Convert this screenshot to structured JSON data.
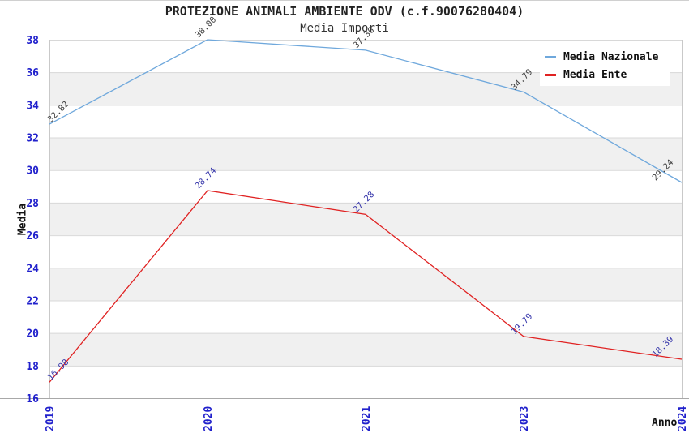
{
  "chart_data": {
    "type": "line",
    "title": "PROTEZIONE ANIMALI AMBIENTE ODV (c.f.90076280404)",
    "subtitle": "Media Importi",
    "xlabel": "Anno",
    "ylabel": "Media",
    "categories": [
      "2019",
      "2020",
      "2021",
      "2023",
      "2024"
    ],
    "series": [
      {
        "name": "Media Nazionale",
        "color": "#6fa8dc",
        "label_color": "#404040",
        "values": [
          32.82,
          38.0,
          37.36,
          34.79,
          29.24
        ]
      },
      {
        "name": "Media Ente",
        "color": "#e02222",
        "label_color": "#3535aa",
        "values": [
          16.98,
          28.74,
          27.28,
          19.79,
          18.39
        ]
      }
    ],
    "ylim": [
      16,
      38
    ],
    "yticks": [
      16,
      18,
      20,
      22,
      24,
      26,
      28,
      30,
      32,
      34,
      36,
      38
    ],
    "grid": "horizontal-bands",
    "band_colors": [
      "#ffffff",
      "#f0f0f0"
    ],
    "gridline_color": "#d8d8d8",
    "axis_line_color": "#a8a8a8",
    "plot_border_color": "#c9c9c9",
    "axis_tick_color": "#2121cc",
    "legend_position": "top-right",
    "value_decimals": 2
  }
}
